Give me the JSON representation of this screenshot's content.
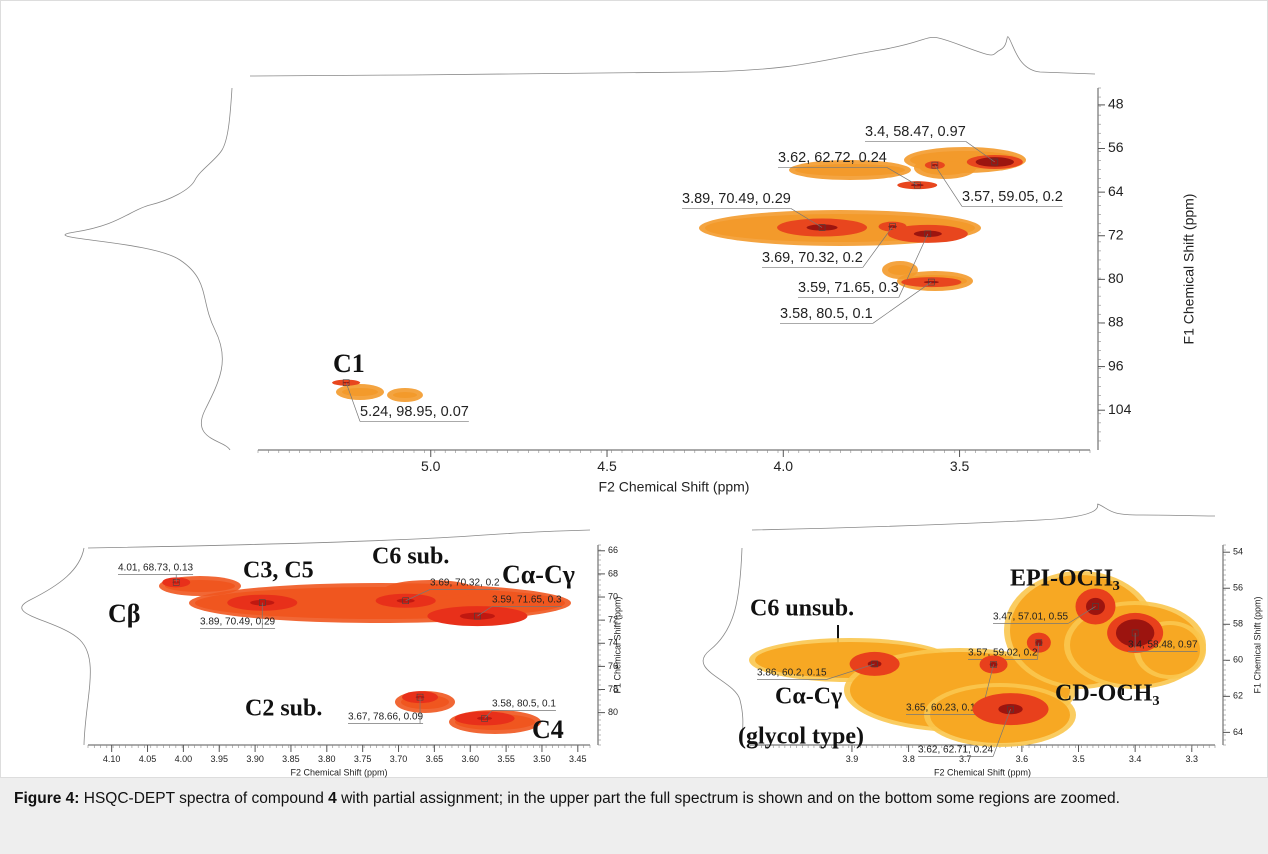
{
  "chart_data": [
    {
      "type": "scatter",
      "x_label": "F2 Chemical Shift (ppm)",
      "y_label": "F1 Chemical Shift (ppm)",
      "xlim": [
        5.49,
        3.13
      ],
      "ylim": [
        44.9,
        111.3
      ],
      "xticks": [
        {
          "value": 5,
          "label": "5.0"
        },
        4.5,
        {
          "value": 4,
          "label": "4.0"
        },
        3.5
      ],
      "yticks": [
        48,
        56,
        64,
        72,
        80,
        88,
        96,
        104
      ],
      "x": [
        3.4,
        3.62,
        3.57,
        3.89,
        3.69,
        3.59,
        3.58,
        5.24
      ],
      "values": [
        58.47,
        62.72,
        59.05,
        70.49,
        70.32,
        71.65,
        80.5,
        98.95
      ],
      "intensity": [
        0.97,
        0.24,
        0.2,
        0.29,
        0.2,
        0.3,
        0.1,
        0.07
      ],
      "value_labels": [
        "3.4, 58.47, 0.97",
        "3.62, 62.72, 0.24",
        "3.57, 59.05, 0.2",
        "3.89, 70.49, 0.29",
        "3.69, 70.32, 0.2",
        "3.59, 71.65, 0.3",
        "3.58, 80.5, 0.1",
        "5.24, 98.95, 0.07"
      ],
      "annotations": [
        "C1"
      ],
      "colors": [
        "#f39a2b",
        "#e8461e",
        "#8e0d0d"
      ]
    },
    {
      "type": "scatter",
      "x_label": "F2 Chemical Shift (ppm)",
      "y_label": "F1 Chemical Shift (ppm)",
      "xlim": [
        4.133,
        3.433
      ],
      "ylim": [
        65.5,
        82.8
      ],
      "xticks": [
        {
          "value": 4.1,
          "label": "4.10"
        },
        4.05,
        {
          "value": 4,
          "label": "4.00"
        },
        3.95,
        {
          "value": 3.9,
          "label": "3.90"
        },
        3.85,
        {
          "value": 3.8,
          "label": "3.80"
        },
        3.75,
        {
          "value": 3.7,
          "label": "3.70"
        },
        3.65,
        {
          "value": 3.6,
          "label": "3.60"
        },
        3.55,
        {
          "value": 3.5,
          "label": "3.50"
        },
        3.45
      ],
      "yticks": [
        66,
        68,
        70,
        72,
        74,
        76,
        78,
        80
      ],
      "x": [
        4.01,
        3.89,
        3.69,
        3.59,
        3.67,
        3.58
      ],
      "values": [
        68.73,
        70.49,
        70.32,
        71.65,
        78.66,
        80.5
      ],
      "intensity": [
        0.13,
        0.29,
        0.2,
        0.3,
        0.09,
        0.1
      ],
      "value_labels": [
        "4.01, 68.73, 0.13",
        "3.89, 70.49, 0.29",
        "3.69, 70.32, 0.2",
        "3.59, 71.65, 0.3",
        "3.67, 78.66, 0.09",
        "3.58, 80.5, 0.1"
      ],
      "annotations": [
        "Cβ",
        "C3, C5",
        "C6 sub.",
        "Cα-Cγ",
        "C2 sub.",
        "C4"
      ],
      "colors": [
        "#f0561f",
        "#e8301a",
        "#b8140f"
      ]
    },
    {
      "type": "scatter",
      "x_label": "F2 Chemical Shift (ppm)",
      "y_label": "F1 Chemical Shift (ppm)",
      "xlim": [
        4.08,
        3.259
      ],
      "ylim": [
        53.6,
        64.7
      ],
      "xticks": [
        3.9,
        3.8,
        3.7,
        3.6,
        3.5,
        3.4,
        3.3
      ],
      "yticks": [
        54,
        56,
        58,
        60,
        62,
        64
      ],
      "x": [
        3.47,
        3.4,
        3.57,
        3.86,
        3.65,
        3.62
      ],
      "values": [
        57.01,
        58.48,
        59.02,
        60.2,
        60.23,
        62.71
      ],
      "intensity": [
        0.55,
        0.97,
        0.2,
        0.15,
        0.16,
        0.24
      ],
      "value_labels": [
        "3.47, 57.01, 0.55",
        "3.4, 58.48, 0.97",
        "3.57, 59.02, 0.2",
        "3.86, 60.2, 0.15",
        "3.65, 60.23, 0.16",
        "3.62, 62.71, 0.24"
      ],
      "annotations": [
        "C6 unsub.",
        "EPI-OCH₃",
        "CD-OCH₃",
        "Cα-Cγ",
        "(glycol type)"
      ],
      "colors": [
        "#f7a823",
        "#e8401c",
        "#8e0d0d"
      ]
    }
  ],
  "caption": {
    "label": "Figure 4:",
    "text1": "HSQC-DEPT spectra of compound",
    "compound": "4",
    "text2": "with partial assignment; in the upper part the full spectrum is shown and on the bottom some regions are zoomed."
  }
}
